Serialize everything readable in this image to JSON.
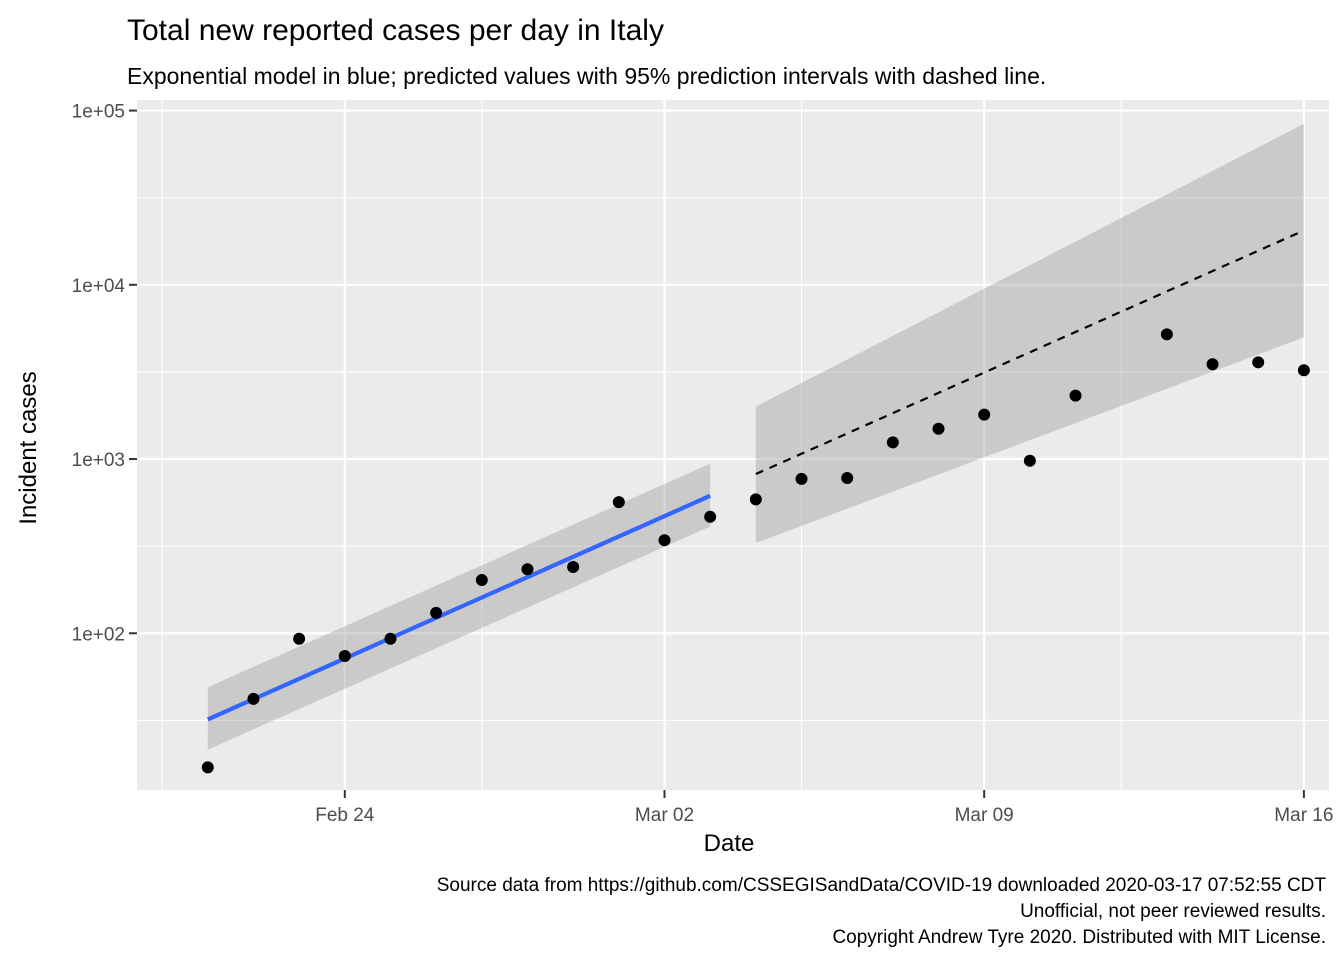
{
  "chart_data": {
    "type": "scatter",
    "title": "Total new reported cases per day in Italy",
    "subtitle": "Exponential model in blue; predicted values with 95% prediction intervals with dashed line.",
    "xlabel": "Date",
    "ylabel": "Incident cases",
    "y_scale": "log10",
    "ylim": [
      12.6,
      115000
    ],
    "xlim": [
      "2020-02-20",
      "2020-03-16"
    ],
    "x_ticks": [
      {
        "date": "2020-02-24",
        "label": "Feb 24"
      },
      {
        "date": "2020-03-02",
        "label": "Mar 02"
      },
      {
        "date": "2020-03-09",
        "label": "Mar 09"
      },
      {
        "date": "2020-03-16",
        "label": "Mar 16"
      }
    ],
    "x_minor_ticks": [
      "2020-02-20",
      "2020-02-27",
      "2020-03-05",
      "2020-03-12"
    ],
    "y_ticks": [
      {
        "value": 100,
        "label": "1e+02"
      },
      {
        "value": 1000,
        "label": "1e+03"
      },
      {
        "value": 10000,
        "label": "1e+04"
      },
      {
        "value": 100000,
        "label": "1e+05"
      }
    ],
    "y_minor_ticks": [
      31.6,
      316,
      3160,
      31600
    ],
    "grid": true,
    "series": [
      {
        "kind": "points",
        "color": "#000000",
        "x": [
          "2020-02-21",
          "2020-02-22",
          "2020-02-23",
          "2020-02-24",
          "2020-02-25",
          "2020-02-26",
          "2020-02-27",
          "2020-02-28",
          "2020-02-29",
          "2020-03-01",
          "2020-03-02",
          "2020-03-03",
          "2020-03-04",
          "2020-03-05",
          "2020-03-06",
          "2020-03-07",
          "2020-03-08",
          "2020-03-09",
          "2020-03-10",
          "2020-03-11",
          "2020-03-13",
          "2020-03-14",
          "2020-03-15",
          "2020-03-16"
        ],
        "y": [
          17,
          42,
          93,
          74,
          93,
          131,
          202,
          233,
          240,
          566,
          342,
          466,
          587,
          769,
          778,
          1247,
          1492,
          1797,
          977,
          2313,
          5198,
          3497,
          3590,
          3233
        ]
      },
      {
        "kind": "fit",
        "color": "#3366ff",
        "x": [
          "2020-02-21",
          "2020-03-03"
        ],
        "y": [
          32,
          615
        ],
        "band_lower": [
          21.5,
          410
        ],
        "band_upper": [
          49,
          940
        ]
      },
      {
        "kind": "prediction",
        "color": "#000000",
        "linestyle": "dashed",
        "x": [
          "2020-03-04",
          "2020-03-16"
        ],
        "y": [
          820,
          20500
        ],
        "band_lower": [
          330,
          5000
        ],
        "band_upper": [
          2000,
          84000
        ]
      }
    ],
    "colors": {
      "panel_bg": "#ebebeb",
      "grid_major": "#ffffff",
      "band_fill": "#999999",
      "fit_line": "#3366ff"
    },
    "caption_lines": [
      "Source data from https://github.com/CSSEGISandData/COVID-19 downloaded  2020-03-17 07:52:55 CDT",
      "Unofficial, not peer reviewed results.",
      "Copyright Andrew Tyre 2020. Distributed with MIT License."
    ]
  }
}
